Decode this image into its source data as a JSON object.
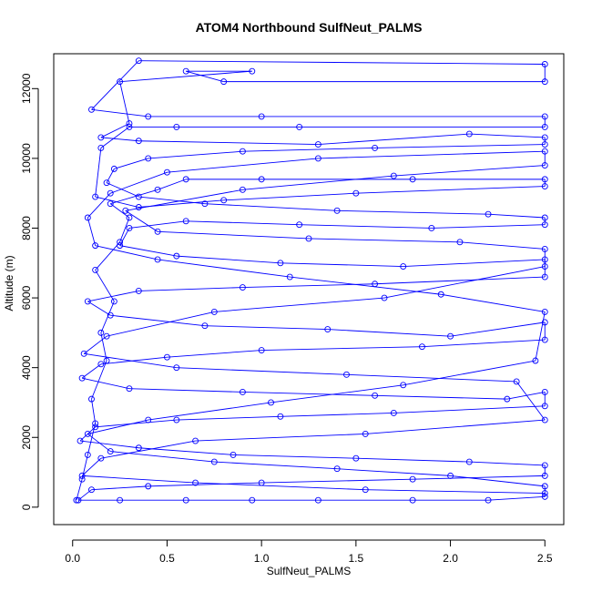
{
  "chart_data": {
    "type": "line",
    "title": "ATOM4 Northbound SulfNeut_PALMS",
    "xlabel": "SulfNeut_PALMS",
    "ylabel": "Altitude (m)",
    "xlim": [
      -0.1,
      2.6
    ],
    "ylim": [
      -500,
      13000
    ],
    "x_ticks": [
      0.0,
      0.5,
      1.0,
      1.5,
      2.0,
      2.5
    ],
    "x_tick_labels": [
      "0.0",
      "0.5",
      "1.0",
      "1.5",
      "2.0",
      "2.5"
    ],
    "y_ticks": [
      0,
      2000,
      4000,
      6000,
      8000,
      10000,
      12000
    ],
    "y_tick_labels": [
      "0",
      "2000",
      "4000",
      "6000",
      "8000",
      "10000",
      "12000"
    ],
    "grid": false,
    "marker": "open-circle",
    "color": "#0000FF",
    "series": [
      {
        "values_xy": [
          [
            0.02,
            200
          ],
          [
            0.05,
            800
          ],
          [
            0.08,
            1500
          ],
          [
            0.12,
            2400
          ],
          [
            0.1,
            3100
          ],
          [
            0.18,
            4200
          ],
          [
            0.15,
            5000
          ],
          [
            0.22,
            5900
          ],
          [
            0.12,
            6800
          ],
          [
            0.25,
            7600
          ],
          [
            0.3,
            8300
          ],
          [
            0.2,
            8700
          ],
          [
            0.45,
            9100
          ],
          [
            0.6,
            9400
          ],
          [
            1.0,
            9400
          ],
          [
            1.8,
            9400
          ],
          [
            2.5,
            9400
          ],
          [
            2.5,
            9200
          ],
          [
            1.5,
            9000
          ],
          [
            0.8,
            8800
          ],
          [
            0.35,
            8600
          ],
          [
            0.12,
            8900
          ],
          [
            0.15,
            10300
          ],
          [
            0.3,
            10900
          ],
          [
            0.55,
            10900
          ],
          [
            1.2,
            10900
          ],
          [
            2.5,
            10900
          ],
          [
            2.5,
            11200
          ],
          [
            1.0,
            11200
          ],
          [
            0.4,
            11200
          ],
          [
            0.1,
            11400
          ],
          [
            0.35,
            12800
          ],
          [
            2.5,
            12700
          ],
          [
            2.5,
            12200
          ],
          [
            0.8,
            12200
          ],
          [
            0.6,
            12500
          ],
          [
            0.95,
            12500
          ],
          [
            0.25,
            12200
          ],
          [
            0.3,
            11000
          ],
          [
            0.15,
            10600
          ],
          [
            0.35,
            10500
          ],
          [
            1.3,
            10400
          ],
          [
            2.1,
            10700
          ],
          [
            2.5,
            10600
          ],
          [
            2.5,
            10400
          ],
          [
            1.6,
            10300
          ],
          [
            0.9,
            10200
          ],
          [
            0.4,
            10000
          ],
          [
            0.22,
            9700
          ],
          [
            0.18,
            9300
          ],
          [
            0.35,
            8900
          ],
          [
            0.7,
            8700
          ],
          [
            1.4,
            8500
          ],
          [
            2.2,
            8400
          ],
          [
            2.5,
            8300
          ],
          [
            2.5,
            8100
          ],
          [
            1.9,
            8000
          ],
          [
            1.2,
            8100
          ],
          [
            0.6,
            8200
          ],
          [
            0.3,
            8000
          ],
          [
            0.25,
            7500
          ],
          [
            0.55,
            7200
          ],
          [
            1.1,
            7000
          ],
          [
            1.75,
            6900
          ],
          [
            2.5,
            7100
          ],
          [
            2.5,
            6600
          ],
          [
            1.6,
            6400
          ],
          [
            0.9,
            6300
          ],
          [
            0.35,
            6200
          ],
          [
            0.08,
            5900
          ],
          [
            0.2,
            5500
          ],
          [
            0.7,
            5200
          ],
          [
            1.35,
            5100
          ],
          [
            2.0,
            4900
          ],
          [
            2.5,
            5300
          ],
          [
            2.5,
            4800
          ],
          [
            1.85,
            4600
          ],
          [
            1.0,
            4500
          ],
          [
            0.5,
            4300
          ],
          [
            0.15,
            4100
          ],
          [
            0.05,
            3700
          ],
          [
            0.3,
            3400
          ],
          [
            0.9,
            3300
          ],
          [
            1.6,
            3200
          ],
          [
            2.3,
            3100
          ],
          [
            2.5,
            3300
          ],
          [
            2.5,
            2900
          ],
          [
            1.7,
            2700
          ],
          [
            1.1,
            2600
          ],
          [
            0.55,
            2500
          ],
          [
            0.12,
            2300
          ],
          [
            0.04,
            1900
          ],
          [
            0.35,
            1700
          ],
          [
            0.85,
            1500
          ],
          [
            1.5,
            1400
          ],
          [
            2.1,
            1300
          ],
          [
            2.5,
            1200
          ],
          [
            2.5,
            900
          ],
          [
            1.8,
            800
          ],
          [
            1.0,
            700
          ],
          [
            0.4,
            600
          ],
          [
            0.1,
            500
          ],
          [
            0.03,
            200
          ],
          [
            0.25,
            200
          ],
          [
            0.6,
            200
          ],
          [
            0.95,
            200
          ],
          [
            1.3,
            200
          ],
          [
            1.8,
            200
          ],
          [
            2.2,
            200
          ],
          [
            2.5,
            300
          ],
          [
            2.5,
            600
          ],
          [
            2.0,
            900
          ],
          [
            1.4,
            1100
          ],
          [
            0.75,
            1300
          ],
          [
            0.2,
            1600
          ],
          [
            0.08,
            2100
          ],
          [
            0.4,
            2500
          ],
          [
            1.05,
            3000
          ],
          [
            1.75,
            3500
          ],
          [
            2.45,
            4200
          ],
          [
            2.5,
            5600
          ],
          [
            1.95,
            6100
          ],
          [
            1.15,
            6600
          ],
          [
            0.45,
            7100
          ],
          [
            0.12,
            7500
          ],
          [
            0.08,
            8300
          ],
          [
            0.2,
            9000
          ],
          [
            0.5,
            9600
          ],
          [
            1.3,
            10000
          ],
          [
            2.5,
            10200
          ],
          [
            2.5,
            9800
          ],
          [
            1.7,
            9500
          ],
          [
            0.9,
            9100
          ],
          [
            0.28,
            8500
          ],
          [
            0.45,
            7900
          ],
          [
            1.25,
            7700
          ],
          [
            2.05,
            7600
          ],
          [
            2.5,
            7400
          ],
          [
            2.5,
            6900
          ],
          [
            1.65,
            6000
          ],
          [
            0.75,
            5600
          ],
          [
            0.18,
            4900
          ],
          [
            0.06,
            4400
          ],
          [
            0.55,
            4000
          ],
          [
            1.45,
            3800
          ],
          [
            2.35,
            3600
          ],
          [
            2.5,
            2500
          ],
          [
            1.55,
            2100
          ],
          [
            0.65,
            1900
          ],
          [
            0.15,
            1400
          ],
          [
            0.05,
            900
          ],
          [
            0.65,
            700
          ],
          [
            1.55,
            500
          ],
          [
            2.5,
            400
          ]
        ]
      }
    ]
  }
}
